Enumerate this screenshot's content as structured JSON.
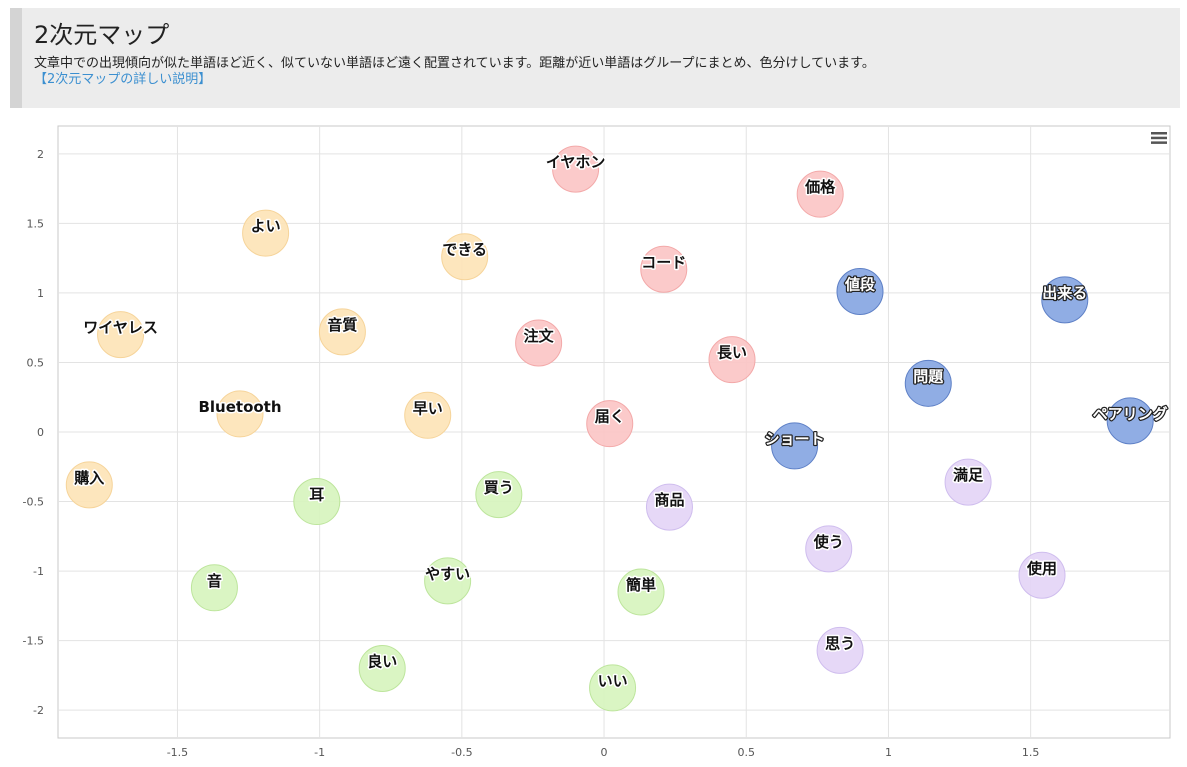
{
  "header": {
    "title": "2次元マップ",
    "description": "文章中での出現傾向が似た単語ほど近く、似ていない単語ほど遠く配置されています。距離が近い単語はグループにまとめ、色分けしています。",
    "link_label": "【2次元マップの詳しい説明】"
  },
  "menu_icon": "hamburger-menu-icon",
  "chart_data": {
    "type": "scatter",
    "title": "",
    "xlabel": "",
    "ylabel": "",
    "xlim": [
      -1.92,
      1.99
    ],
    "ylim": [
      -2.2,
      2.2
    ],
    "x_ticks": [
      -1.5,
      -1,
      -0.5,
      0,
      0.5,
      1,
      1.5
    ],
    "x_tick_labels": [
      "-1.5",
      "-1",
      "-0.5",
      "0",
      "0.5",
      "1",
      "1.5"
    ],
    "y_ticks": [
      2,
      1.5,
      1,
      0.5,
      0,
      -0.5,
      -1,
      -1.5,
      -2
    ],
    "y_tick_labels": [
      "2",
      "1.5",
      "1",
      "0.5",
      "0",
      "-0.5",
      "-1",
      "-1.5",
      "-2"
    ],
    "grid": true,
    "legend": false,
    "groups": [
      {
        "id": "orange",
        "color": "#fde3b6",
        "stroke": "#f6d49a",
        "points": [
          {
            "label": "よい",
            "x": -1.19,
            "y": 1.43
          },
          {
            "label": "できる",
            "x": -0.49,
            "y": 1.26
          },
          {
            "label": "ワイヤレス",
            "x": -1.7,
            "y": 0.7
          },
          {
            "label": "音質",
            "x": -0.92,
            "y": 0.72
          },
          {
            "label": "Bluetooth",
            "x": -1.28,
            "y": 0.13
          },
          {
            "label": "早い",
            "x": -0.62,
            "y": 0.12
          },
          {
            "label": "購入",
            "x": -1.81,
            "y": -0.38
          }
        ]
      },
      {
        "id": "red",
        "color": "#fbc4c4",
        "stroke": "#f3a9a9",
        "points": [
          {
            "label": "イヤホン",
            "x": -0.1,
            "y": 1.89
          },
          {
            "label": "価格",
            "x": 0.76,
            "y": 1.71
          },
          {
            "label": "コード",
            "x": 0.21,
            "y": 1.17
          },
          {
            "label": "注文",
            "x": -0.23,
            "y": 0.64
          },
          {
            "label": "長い",
            "x": 0.45,
            "y": 0.52
          },
          {
            "label": "届く",
            "x": 0.02,
            "y": 0.06
          }
        ]
      },
      {
        "id": "blue",
        "color": "#90ade4",
        "stroke": "#5e80c6",
        "points": [
          {
            "label": "値段",
            "x": 0.9,
            "y": 1.01
          },
          {
            "label": "出来る",
            "x": 1.62,
            "y": 0.95
          },
          {
            "label": "問題",
            "x": 1.14,
            "y": 0.35
          },
          {
            "label": "ペアリング",
            "x": 1.85,
            "y": 0.08
          },
          {
            "label": "ショート",
            "x": 0.67,
            "y": -0.1
          }
        ]
      },
      {
        "id": "green",
        "color": "#d6f4bd",
        "stroke": "#bde59c",
        "points": [
          {
            "label": "耳",
            "x": -1.01,
            "y": -0.5
          },
          {
            "label": "買う",
            "x": -0.37,
            "y": -0.45
          },
          {
            "label": "音",
            "x": -1.37,
            "y": -1.12
          },
          {
            "label": "やすい",
            "x": -0.55,
            "y": -1.07
          },
          {
            "label": "簡単",
            "x": 0.13,
            "y": -1.15
          },
          {
            "label": "良い",
            "x": -0.78,
            "y": -1.7
          },
          {
            "label": "いい",
            "x": 0.03,
            "y": -1.84
          }
        ]
      },
      {
        "id": "purple",
        "color": "#e3d4f6",
        "stroke": "#cfbdee",
        "points": [
          {
            "label": "商品",
            "x": 0.23,
            "y": -0.54
          },
          {
            "label": "満足",
            "x": 1.28,
            "y": -0.36
          },
          {
            "label": "使う",
            "x": 0.79,
            "y": -0.84
          },
          {
            "label": "使用",
            "x": 1.54,
            "y": -1.03
          },
          {
            "label": "思う",
            "x": 0.83,
            "y": -1.57
          }
        ]
      }
    ]
  }
}
